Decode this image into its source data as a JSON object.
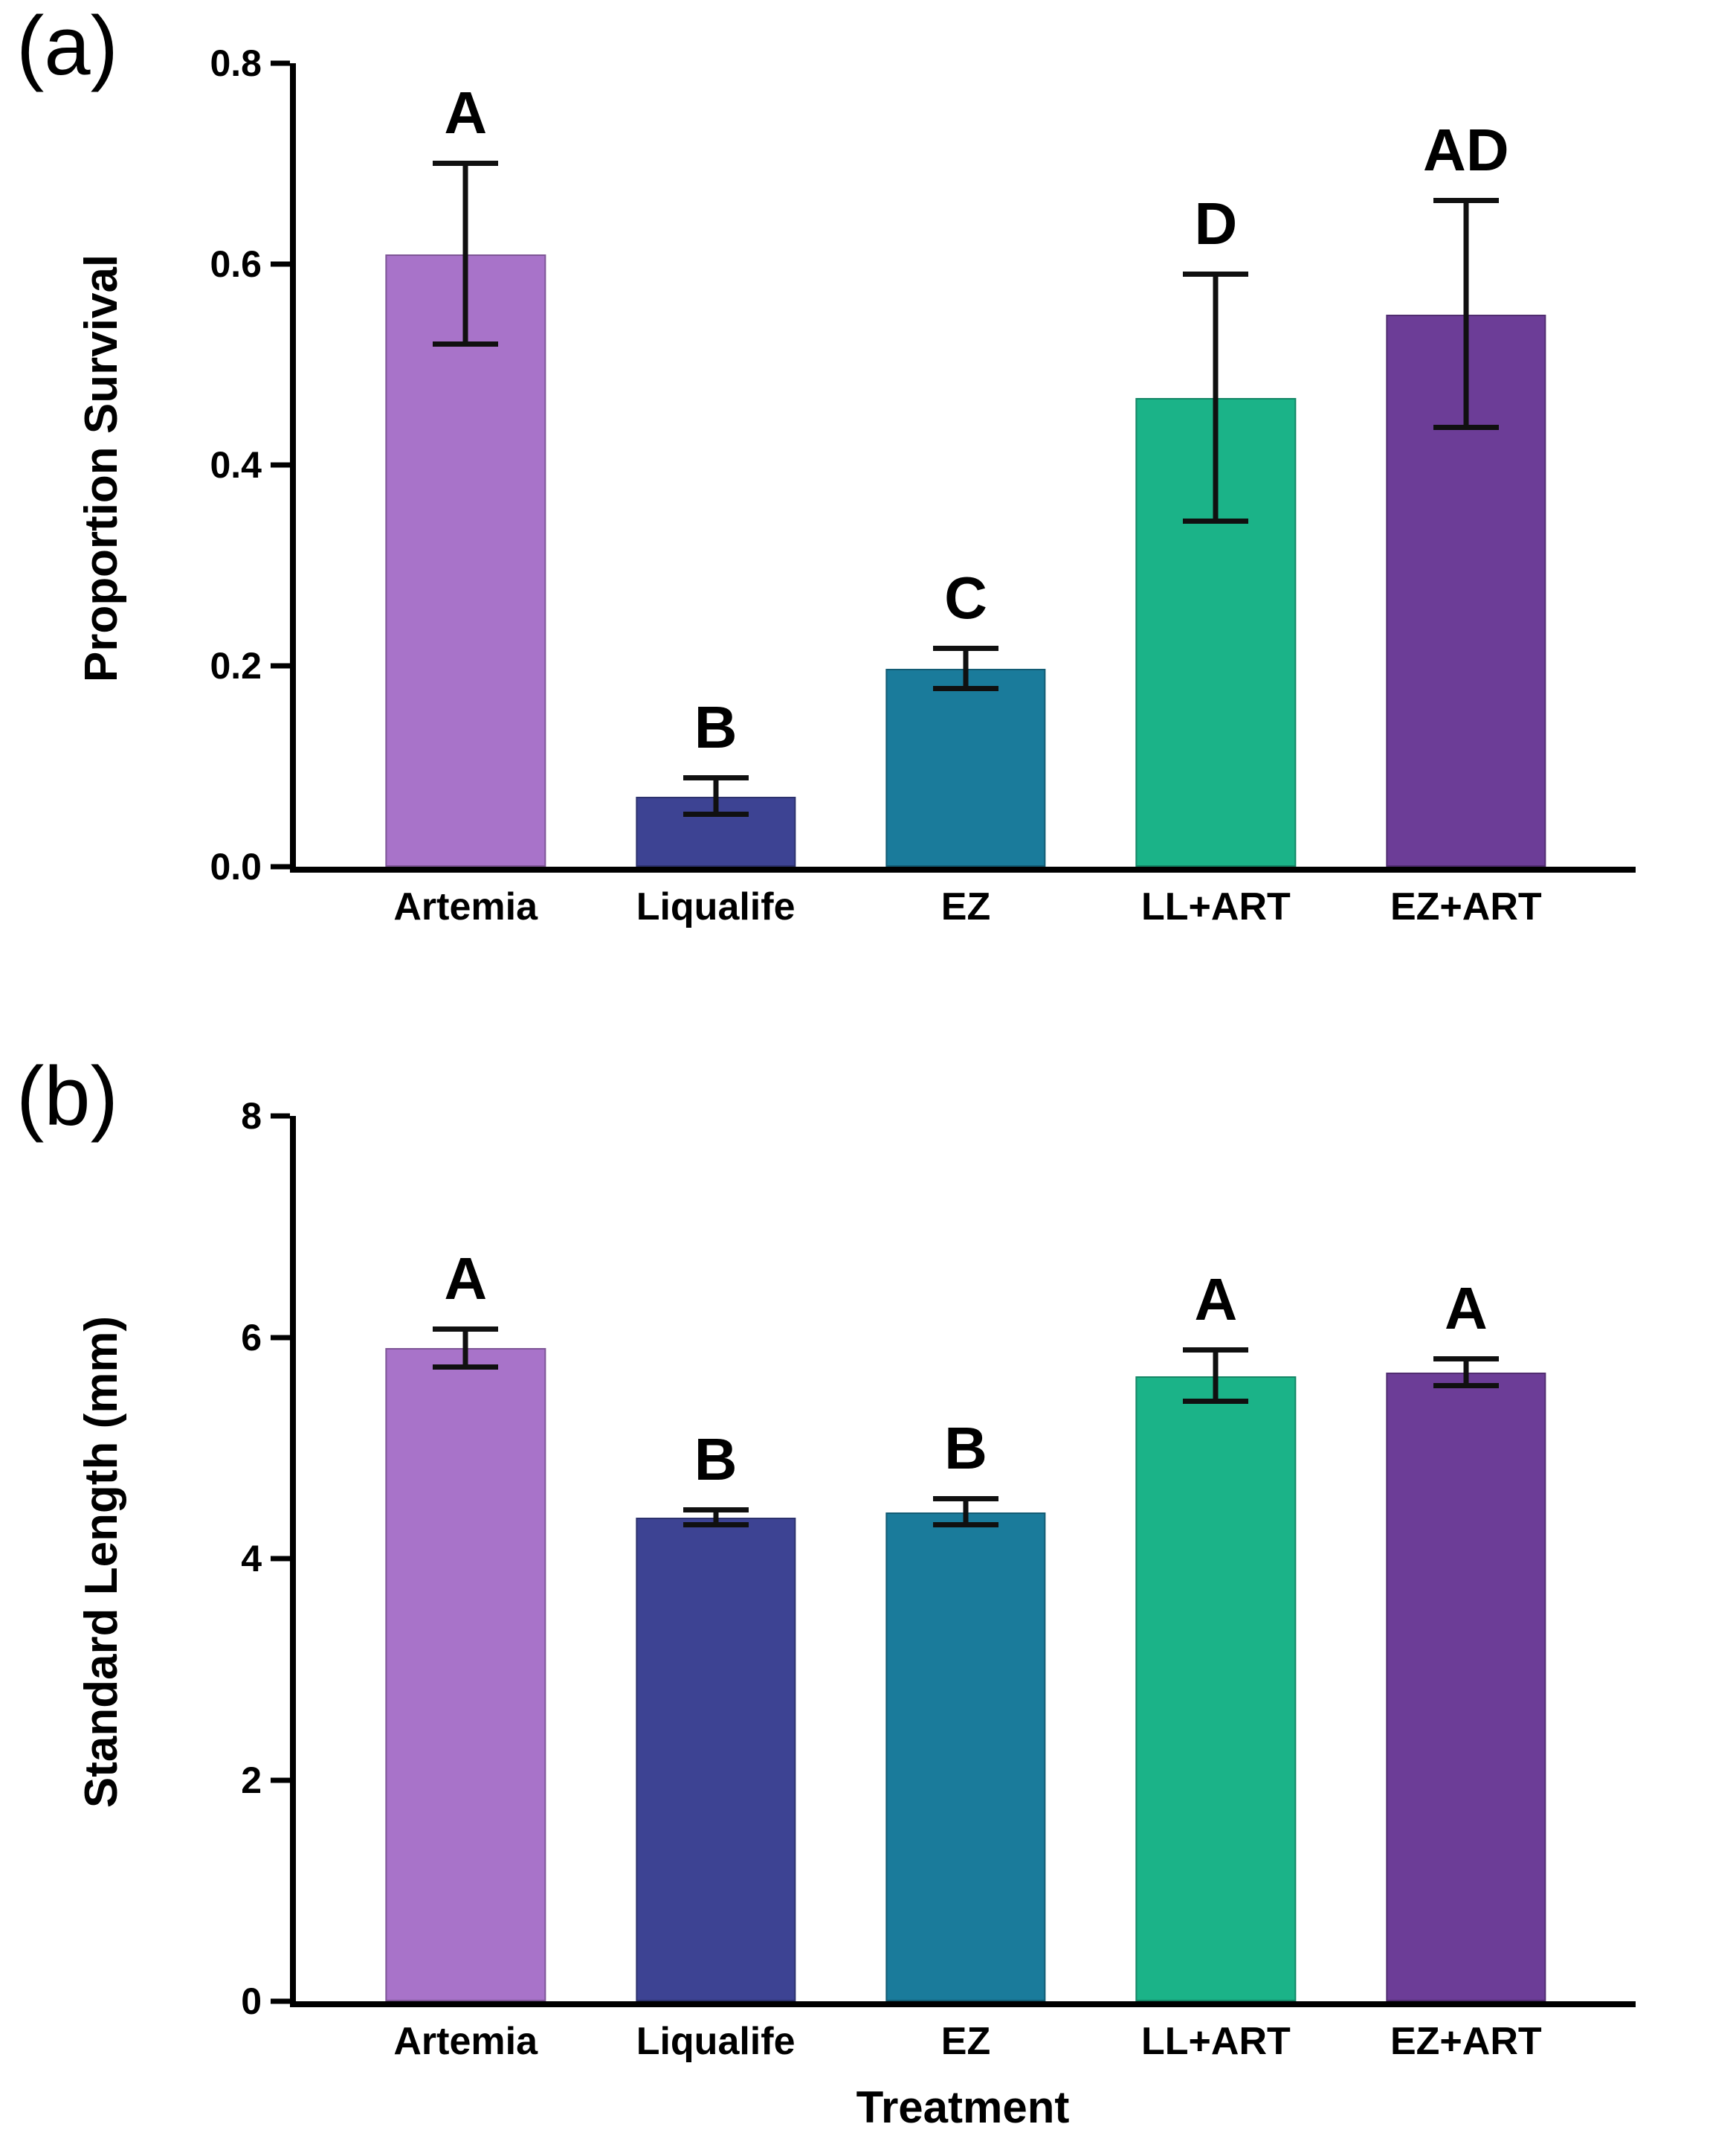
{
  "figure_colors": {
    "axis": "#000000",
    "error_bar": "#101010",
    "background": "#ffffff"
  },
  "chart_data": [
    {
      "type": "bar",
      "panel": "(a)",
      "title": "",
      "xlabel": "",
      "ylabel": "Proportion Survival",
      "ylim": [
        0,
        0.8
      ],
      "yticks": [
        "0.0",
        "0.2",
        "0.4",
        "0.6",
        "0.8"
      ],
      "grid": false,
      "legend": "none",
      "categories": [
        "Artemia",
        "Liqualife",
        "EZ",
        "LL+ART",
        "EZ+ART"
      ],
      "values": [
        0.61,
        0.07,
        0.197,
        0.467,
        0.55
      ],
      "errors": [
        0.09,
        0.018,
        0.02,
        0.123,
        0.113
      ],
      "letters": [
        "A",
        "B",
        "C",
        "D",
        "AD"
      ],
      "colors": [
        "#A873C9",
        "#3D4393",
        "#1A7B9B",
        "#1BB388",
        "#6C3D97"
      ]
    },
    {
      "type": "bar",
      "panel": "(b)",
      "title": "",
      "xlabel": "Treatment",
      "ylabel": "Standard Length (mm)",
      "ylim": [
        0,
        8
      ],
      "yticks": [
        "0",
        "2",
        "4",
        "6",
        "8"
      ],
      "grid": false,
      "legend": "none",
      "categories": [
        "Artemia",
        "Liqualife",
        "EZ",
        "LL+ART",
        "EZ+ART"
      ],
      "values": [
        5.9,
        4.37,
        4.42,
        5.65,
        5.68
      ],
      "errors": [
        0.17,
        0.07,
        0.12,
        0.23,
        0.12
      ],
      "letters": [
        "A",
        "B",
        "B",
        "A",
        "A"
      ],
      "colors": [
        "#A873C9",
        "#3D4393",
        "#1A7B9B",
        "#1BB388",
        "#6C3D97"
      ]
    }
  ]
}
